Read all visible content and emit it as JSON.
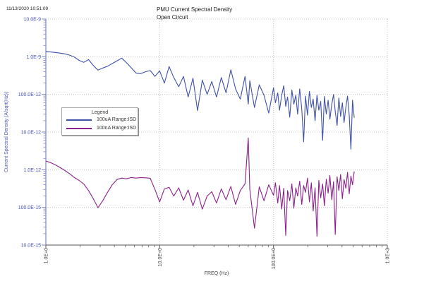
{
  "header": {
    "timestamp": "11/13/2020 10:51:09"
  },
  "chart": {
    "title_line1": "PMU Current Spectral Density",
    "title_line2": "Open Circuit",
    "xlabel": "FREQ (Hz)",
    "ylabel": "Current Spectral Density (A/sqrt(Hz))",
    "legend": {
      "title": "Legend",
      "items": [
        {
          "label": "100uA Range:ISD",
          "color": "#3f51a8"
        },
        {
          "label": "100nA Range:ISD",
          "color": "#8c218c"
        }
      ]
    }
  },
  "colors": {
    "y_axis_line": "#7e84c8",
    "y_tick_text": "#4a55b8",
    "y_title_text": "#5055b5",
    "x_axis_line": "#555555",
    "x_tick_text": "#444444",
    "grid": "#c4c4c4",
    "title_text": "#1a1a1a"
  },
  "chart_data": {
    "type": "line",
    "title": "PMU Current Spectral Density - Open Circuit",
    "xlabel": "FREQ (Hz)",
    "ylabel": "Current Spectral Density (A/sqrt(Hz))",
    "x_scale": "log",
    "y_scale": "log",
    "xlim": [
      1,
      1000
    ],
    "ylim": [
      1e-14,
      1e-08
    ],
    "grid": true,
    "legend_position": "upper-left-inside",
    "x_ticks": [
      {
        "value": 1,
        "label": "1.0E+0"
      },
      {
        "value": 10,
        "label": "10.0E+0"
      },
      {
        "value": 100,
        "label": "100.0E+0"
      },
      {
        "value": 1000,
        "label": "1.0E+3"
      }
    ],
    "y_ticks": [
      {
        "value": 1e-08,
        "label": "10.0E-9"
      },
      {
        "value": 1e-09,
        "label": "1.0E-9"
      },
      {
        "value": 1e-10,
        "label": "100.0E-12"
      },
      {
        "value": 1e-11,
        "label": "10.0E-12"
      },
      {
        "value": 1e-12,
        "label": "1.0E-12"
      },
      {
        "value": 1e-13,
        "label": "100.0E-15"
      },
      {
        "value": 1e-14,
        "label": "10.0E-15"
      }
    ],
    "f": [
      1.0,
      1.1,
      1.21,
      1.33,
      1.47,
      1.62,
      1.78,
      1.96,
      2.15,
      2.37,
      2.61,
      2.87,
      3.16,
      3.48,
      3.83,
      4.22,
      4.64,
      5.11,
      5.62,
      6.19,
      6.81,
      7.5,
      8.25,
      9.08,
      10.0,
      11.0,
      12.1,
      13.3,
      14.7,
      16.2,
      17.8,
      19.6,
      21.5,
      23.7,
      26.1,
      28.7,
      31.6,
      34.8,
      38.3,
      42.2,
      46.4,
      51.1,
      56.2,
      60.0,
      61.9,
      68.1,
      75.0,
      82.5,
      90.8,
      100,
      104,
      109,
      113,
      118,
      123,
      128,
      133,
      139,
      145,
      151,
      157,
      163,
      170,
      177,
      184,
      191,
      199,
      207,
      215,
      223,
      232,
      241,
      250,
      260,
      270,
      280,
      291,
      302,
      313,
      325,
      337,
      349,
      362,
      375,
      389,
      403,
      417,
      432,
      447,
      463,
      479,
      495,
      512
    ],
    "series": [
      {
        "name": "100uA Range:ISD",
        "color": "#3f51a8",
        "values": [
          1.38e-09,
          1.34e-09,
          1.3e-09,
          1.25e-09,
          1.19e-09,
          1.1e-09,
          9.8e-10,
          8e-10,
          7.1e-10,
          8.4e-10,
          5.9e-10,
          4.4e-10,
          5e-10,
          5.6e-10,
          6.6e-10,
          7.8e-10,
          9.2e-10,
          6.9e-10,
          5.1e-10,
          3.7e-10,
          3.55e-10,
          4e-10,
          4.3e-10,
          3e-10,
          4.2e-10,
          2e-10,
          5.5e-10,
          2.8e-10,
          1.6e-10,
          3e-10,
          8.5e-11,
          2.7e-10,
          3.7e-11,
          2.4e-10,
          1e-10,
          2.2e-10,
          8.5e-11,
          2.8e-10,
          1.1e-10,
          4.5e-10,
          1.4e-10,
          7.5e-11,
          3e-10,
          5.5e-11,
          2.3e-10,
          4.5e-11,
          1.8e-10,
          9.5e-11,
          3.2e-11,
          1.5e-10,
          6e-11,
          1.1e-10,
          3.8e-11,
          9.5e-11,
          1.7e-10,
          4.8e-11,
          8.5e-11,
          2.5e-11,
          1.3e-10,
          5.5e-11,
          9.5e-11,
          3e-11,
          1.4e-10,
          4.2e-11,
          5.5e-12,
          9e-11,
          2.8e-11,
          1.2e-10,
          4.5e-11,
          7.5e-11,
          2e-11,
          9.5e-11,
          3.8e-11,
          6.5e-11,
          6e-12,
          8.8e-11,
          3e-11,
          7e-11,
          2.2e-11,
          5.5e-11,
          1e-10,
          3.5e-11,
          1.5e-11,
          8e-11,
          2.6e-11,
          6e-11,
          1.8e-11,
          4.5e-11,
          9e-11,
          2.8e-11,
          3.5e-12,
          7e-11,
          2.4e-11
        ]
      },
      {
        "name": "100nA Range:ISD",
        "color": "#8c218c",
        "values": [
          1.7e-12,
          1.55e-12,
          1.35e-12,
          1.15e-12,
          9.5e-13,
          7.8e-13,
          6.2e-13,
          5.2e-13,
          4.2e-13,
          2.8e-13,
          1.7e-13,
          9.8e-14,
          1.5e-13,
          2.5e-13,
          4e-13,
          5.5e-13,
          6e-13,
          5.75e-13,
          6.2e-13,
          6e-13,
          6.2e-13,
          6.1e-13,
          5.95e-13,
          3e-13,
          1.4e-13,
          3.1e-13,
          3.4e-13,
          2e-13,
          3.3e-13,
          1.55e-13,
          2.9e-13,
          1.1e-13,
          2.5e-13,
          9e-14,
          2e-13,
          2.6e-13,
          1.3e-13,
          3.1e-13,
          1.6e-13,
          3.6e-13,
          1.2e-13,
          2.8e-13,
          4.2e-13,
          7e-12,
          3e-13,
          2.8e-14,
          3.5e-13,
          1.5e-13,
          4e-13,
          2.1e-13,
          4.5e-13,
          1.3e-13,
          3.8e-13,
          9e-14,
          3.2e-13,
          1.8e-14,
          2.8e-13,
          1.5e-13,
          4.2e-13,
          9.5e-14,
          3.3e-13,
          2e-13,
          5e-13,
          1.2e-13,
          3.8e-13,
          2.5e-13,
          6e-13,
          1.4e-13,
          4.5e-13,
          8e-14,
          3.3e-13,
          1.7e-14,
          5.2e-13,
          1.8e-13,
          4.2e-13,
          1.1e-13,
          5.6e-13,
          2.4e-13,
          7e-13,
          1.6e-13,
          4.8e-13,
          1.9e-14,
          6.5e-13,
          2.8e-13,
          7.5e-13,
          1.7e-13,
          5.5e-13,
          3.2e-13,
          8.5e-13,
          2.3e-13,
          6.8e-13,
          4e-13,
          9e-13
        ]
      }
    ]
  }
}
